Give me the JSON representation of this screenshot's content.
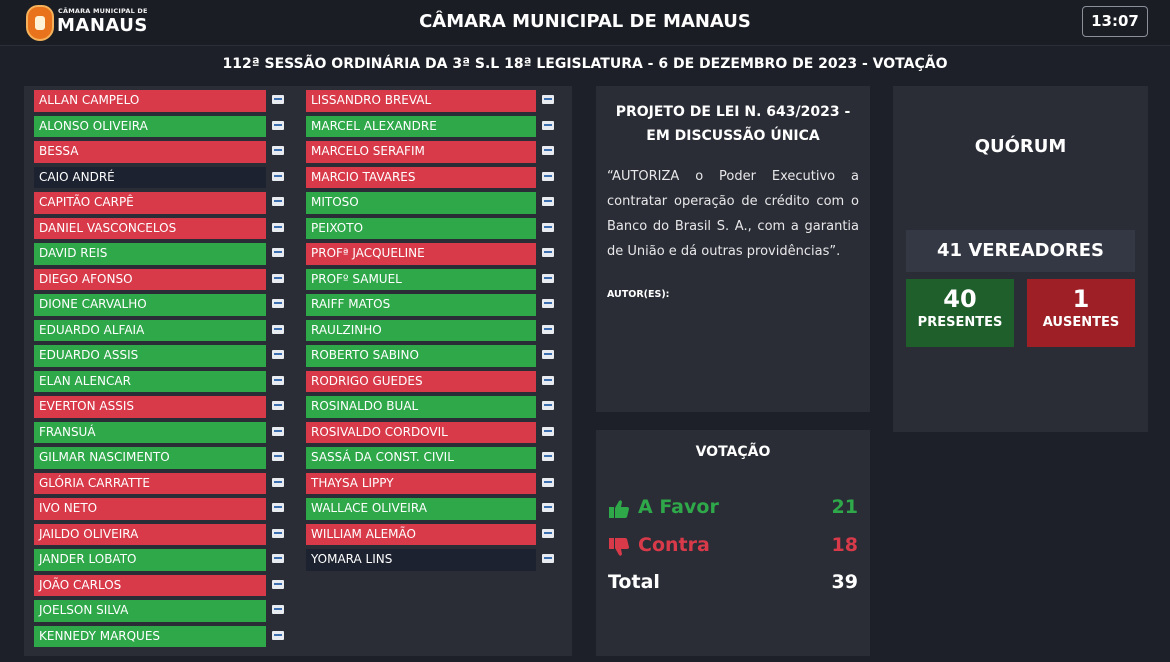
{
  "header": {
    "logo_small": "CÂMARA MUNICIPAL DE",
    "logo_big": "MANAUS",
    "title": "CÂMARA MUNICIPAL DE MANAUS",
    "clock": "13:07"
  },
  "session_title": "112ª SESSÃO ORDINÁRIA DA 3ª S.L 18ª LEGISLATURA - 6 DE DEZEMBRO DE 2023 - VOTAÇÃO",
  "colors": {
    "vote_yes": "#2fa84a",
    "vote_no": "#d83a4a",
    "no_vote": "#1c2230",
    "present": "#1e5f2c",
    "absent": "#9e1f26"
  },
  "council": {
    "left_column": [
      {
        "name": "ALLAN CAMPELO",
        "vote": "no"
      },
      {
        "name": "ALONSO OLIVEIRA",
        "vote": "yes"
      },
      {
        "name": "BESSA",
        "vote": "no"
      },
      {
        "name": "CAIO ANDRÉ",
        "vote": "none"
      },
      {
        "name": "CAPITÃO CARPÊ",
        "vote": "no"
      },
      {
        "name": "DANIEL VASCONCELOS",
        "vote": "no"
      },
      {
        "name": "DAVID REIS",
        "vote": "yes"
      },
      {
        "name": "DIEGO AFONSO",
        "vote": "no"
      },
      {
        "name": "DIONE CARVALHO",
        "vote": "yes"
      },
      {
        "name": "EDUARDO ALFAIA",
        "vote": "yes"
      },
      {
        "name": "EDUARDO ASSIS",
        "vote": "yes"
      },
      {
        "name": "ELAN ALENCAR",
        "vote": "yes"
      },
      {
        "name": "EVERTON ASSIS",
        "vote": "no"
      },
      {
        "name": "FRANSUÁ",
        "vote": "yes"
      },
      {
        "name": "GILMAR NASCIMENTO",
        "vote": "yes"
      },
      {
        "name": "GLÓRIA CARRATTE",
        "vote": "no"
      },
      {
        "name": "IVO NETO",
        "vote": "no"
      },
      {
        "name": "JAILDO OLIVEIRA",
        "vote": "no"
      },
      {
        "name": "JANDER LOBATO",
        "vote": "yes"
      },
      {
        "name": "JOÃO CARLOS",
        "vote": "no"
      },
      {
        "name": "JOELSON SILVA",
        "vote": "yes"
      },
      {
        "name": "KENNEDY MARQUES",
        "vote": "yes"
      }
    ],
    "right_column": [
      {
        "name": "LISSANDRO BREVAL",
        "vote": "no"
      },
      {
        "name": "MARCEL ALEXANDRE",
        "vote": "yes"
      },
      {
        "name": "MARCELO SERAFIM",
        "vote": "no"
      },
      {
        "name": "MARCIO TAVARES",
        "vote": "no"
      },
      {
        "name": "MITOSO",
        "vote": "yes"
      },
      {
        "name": "PEIXOTO",
        "vote": "yes"
      },
      {
        "name": "PROFª JACQUELINE",
        "vote": "no"
      },
      {
        "name": "PROFº SAMUEL",
        "vote": "yes"
      },
      {
        "name": "RAIFF MATOS",
        "vote": "yes"
      },
      {
        "name": "RAULZINHO",
        "vote": "yes"
      },
      {
        "name": "ROBERTO SABINO",
        "vote": "yes"
      },
      {
        "name": "RODRIGO GUEDES",
        "vote": "no"
      },
      {
        "name": "ROSINALDO BUAL",
        "vote": "yes"
      },
      {
        "name": "ROSIVALDO CORDOVIL",
        "vote": "no"
      },
      {
        "name": "SASSÁ DA CONST. CIVIL",
        "vote": "yes"
      },
      {
        "name": "THAYSA LIPPY",
        "vote": "no"
      },
      {
        "name": "WALLACE OLIVEIRA",
        "vote": "yes"
      },
      {
        "name": "WILLIAM ALEMÃO",
        "vote": "no"
      },
      {
        "name": "YOMARA LINS",
        "vote": "none"
      }
    ]
  },
  "project": {
    "title_line1": "PROJETO DE LEI N. 643/2023 -",
    "title_line2": "EM DISCUSSÃO ÚNICA",
    "description": "“AUTORIZA o Poder Executivo a contratar operação de crédito com o Banco do Brasil S. A., com a garantia de União e dá outras providências”.",
    "author_label": "AUTOR(ES):"
  },
  "voting": {
    "title": "VOTAÇÃO",
    "favor_label": "A Favor",
    "favor_value": "21",
    "favor_icon": "thumbs-up-icon",
    "contra_label": "Contra",
    "contra_value": "18",
    "contra_icon": "thumbs-down-icon",
    "total_label": "Total",
    "total_value": "39"
  },
  "quorum": {
    "title": "QUÓRUM",
    "vereadores": "41 VEREADORES",
    "present_value": "40",
    "present_label": "PRESENTES",
    "absent_value": "1",
    "absent_label": "AUSENTES"
  }
}
